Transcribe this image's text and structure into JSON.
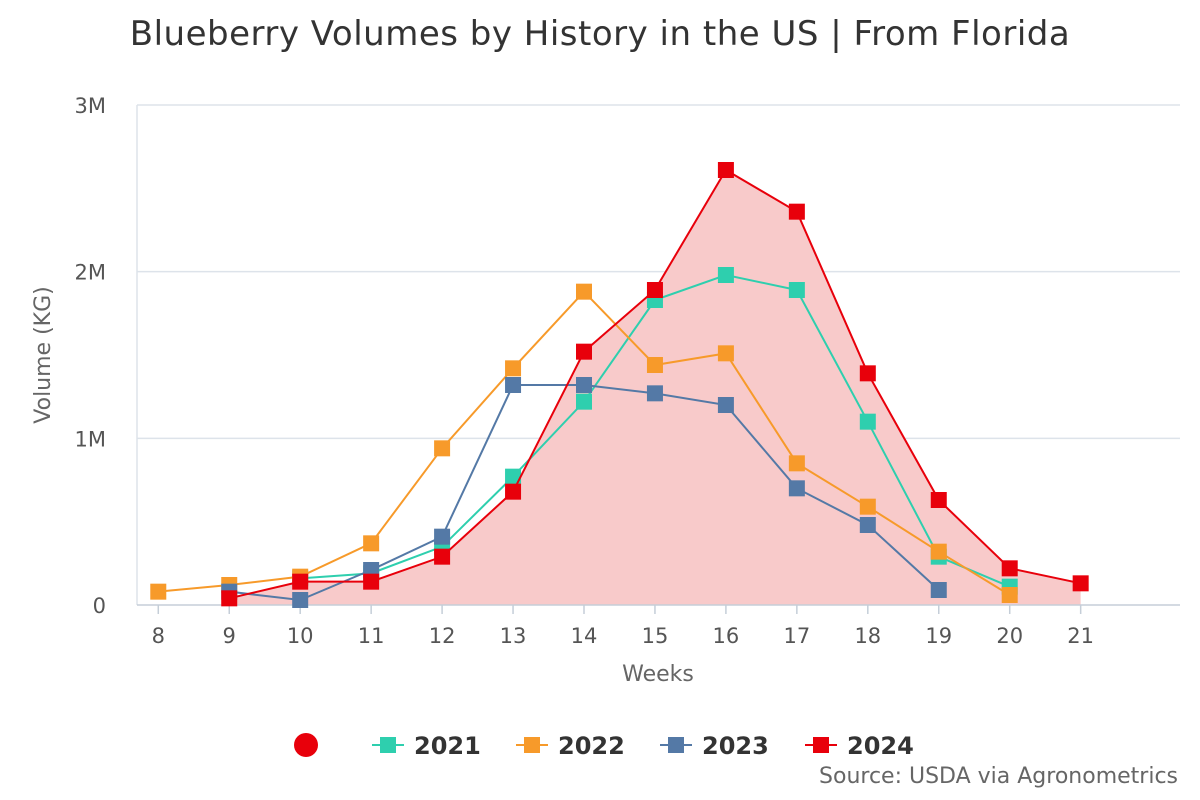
{
  "chart_data": {
    "type": "line",
    "title": "Blueberry Volumes by History in the US | From Florida",
    "xlabel": "Weeks",
    "ylabel": "Volume (KG)",
    "source": "Source: USDA via Agronometrics",
    "x": [
      8,
      9,
      10,
      11,
      12,
      13,
      14,
      15,
      16,
      17,
      18,
      19,
      20,
      21
    ],
    "xlim": [
      7.7,
      22.4
    ],
    "ylim": [
      0,
      3000000
    ],
    "yticks": [
      {
        "value": 0,
        "label": "0"
      },
      {
        "value": 1000000,
        "label": "1M"
      },
      {
        "value": 2000000,
        "label": "2M"
      },
      {
        "value": 3000000,
        "label": "3M"
      }
    ],
    "grid": true,
    "legend_position": "bottom",
    "series": [
      {
        "name": "2021",
        "color": "#2ecfae",
        "values": [
          null,
          null,
          160000,
          190000,
          350000,
          770000,
          1220000,
          1830000,
          1980000,
          1890000,
          1100000,
          290000,
          110000,
          null
        ]
      },
      {
        "name": "2022",
        "color": "#f79a2a",
        "values": [
          80000,
          120000,
          170000,
          370000,
          940000,
          1420000,
          1880000,
          1440000,
          1510000,
          850000,
          590000,
          320000,
          60000,
          null
        ]
      },
      {
        "name": "2023",
        "color": "#5479a6",
        "values": [
          null,
          80000,
          30000,
          210000,
          410000,
          1320000,
          1320000,
          1270000,
          1200000,
          700000,
          480000,
          90000,
          null,
          null
        ]
      },
      {
        "name": "2024",
        "color": "#e8000b",
        "area": true,
        "area_color": "#f8caca",
        "values": [
          null,
          40000,
          140000,
          140000,
          290000,
          680000,
          1520000,
          1890000,
          2610000,
          2360000,
          1390000,
          630000,
          220000,
          130000
        ]
      }
    ],
    "legend_extra_marker": {
      "shape": "circle",
      "color": "#e8000b"
    }
  }
}
